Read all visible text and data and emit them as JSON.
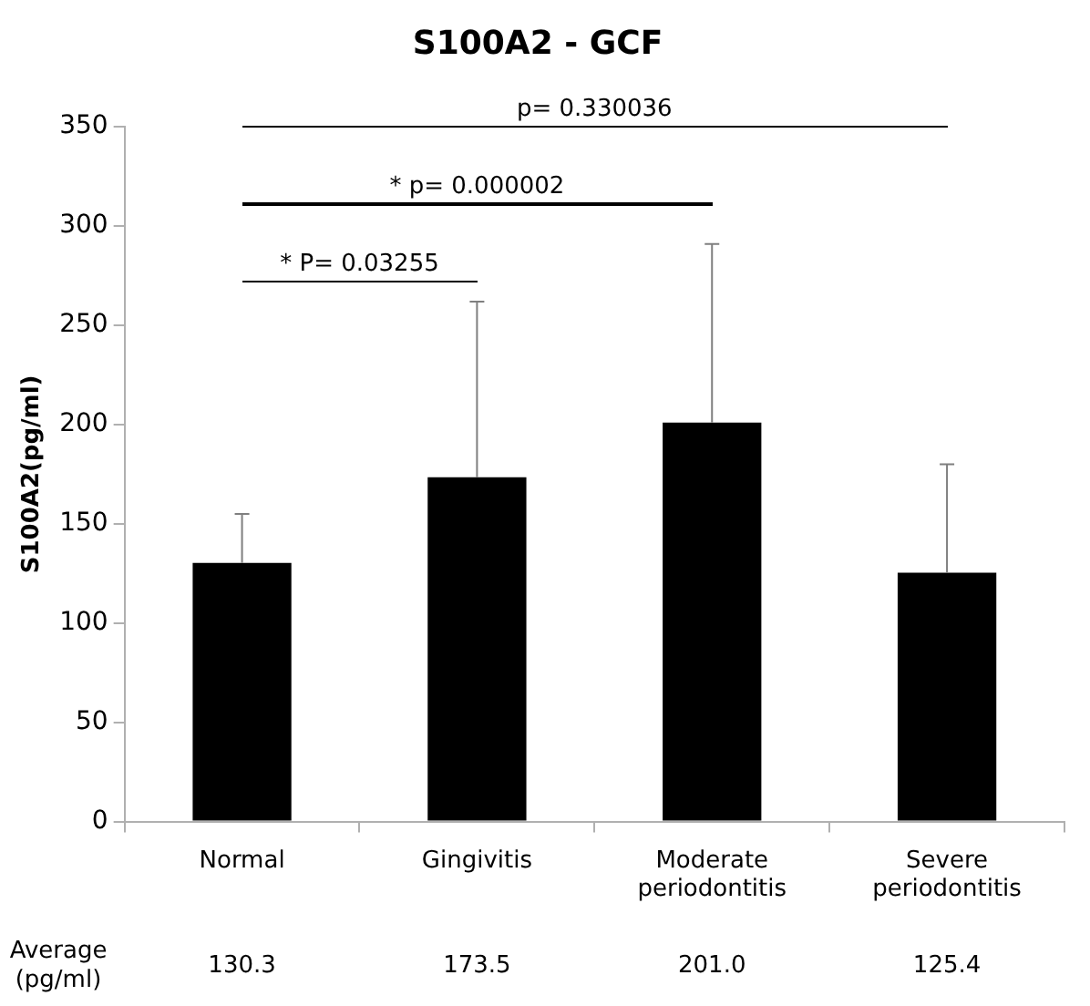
{
  "chart_data": {
    "type": "bar",
    "title": "S100A2 - GCF",
    "ylabel": "S100A2(pg/ml)",
    "categories": [
      "Normal",
      "Gingivitis",
      "Moderate periodontitis",
      "Severe periodontitis"
    ],
    "values": [
      130.3,
      173.5,
      201.0,
      125.4
    ],
    "color": "#000000",
    "errors": [
      [
        130.3,
        155
      ],
      [
        173.5,
        262
      ],
      [
        201.0,
        291
      ],
      [
        125.4,
        180
      ]
    ],
    "value_labels": [
      "130.3",
      "173.5",
      "201.0",
      "125.4"
    ],
    "annotations": [
      "Average (pg/ml)",
      "* P= 0.03255",
      "* p= 0.000002",
      "p= 0.330036"
    ],
    "ylim": [
      0,
      350
    ],
    "yticks": [
      0,
      50,
      100,
      150,
      200,
      250,
      300,
      350
    ],
    "grid": false,
    "legend": false
  }
}
